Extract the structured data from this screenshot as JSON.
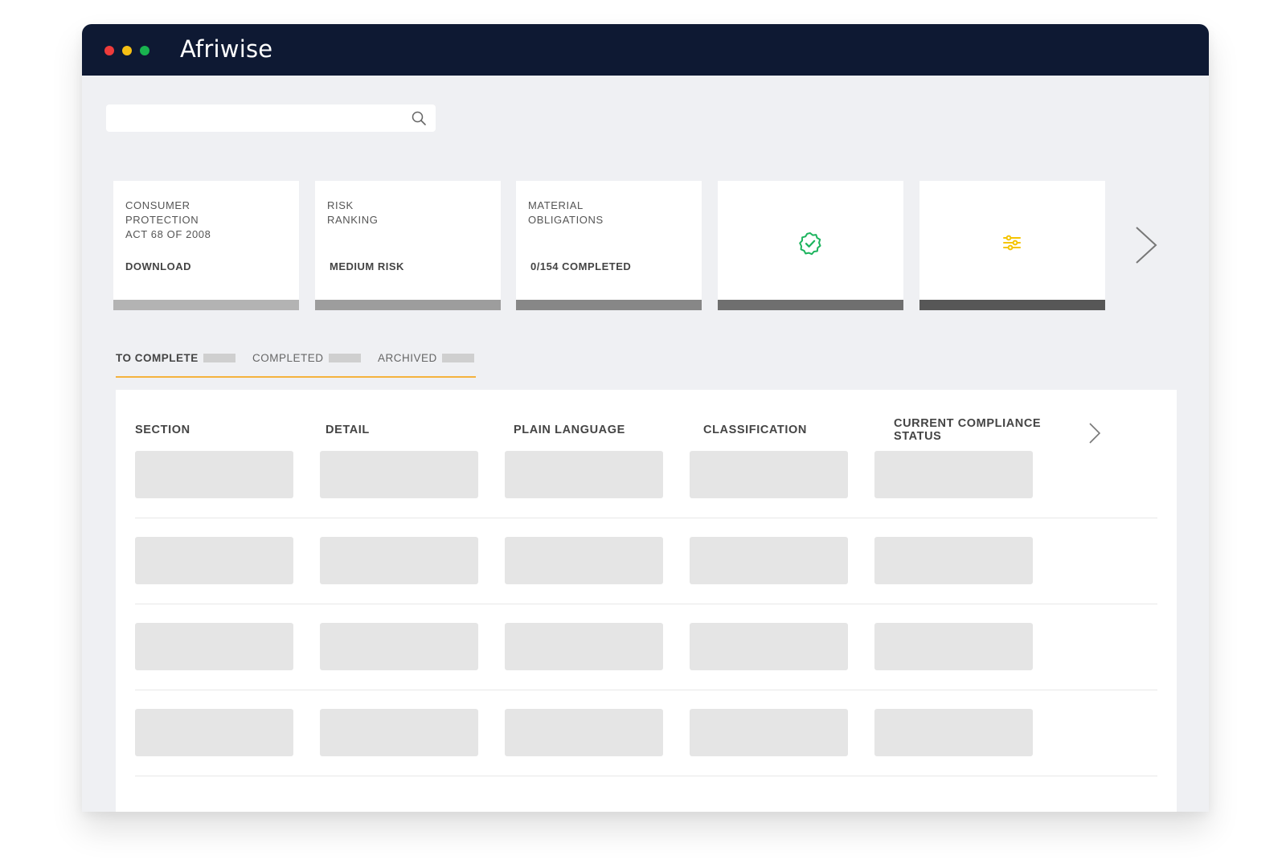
{
  "app": {
    "brand": "Afriwise"
  },
  "search": {
    "placeholder": "",
    "value": "",
    "icon": "search-icon"
  },
  "cards": [
    {
      "label_lines": [
        "CONSUMER",
        "PROTECTION",
        "ACT 68 OF 2008"
      ],
      "value": "DOWNLOAD",
      "bar_color": "#b3b3b3"
    },
    {
      "label_lines": [
        "RISK",
        "RANKING"
      ],
      "value": "MEDIUM RISK",
      "bar_color": "#9d9d9d"
    },
    {
      "label_lines": [
        "MATERIAL",
        "OBLIGATIONS"
      ],
      "value": "0/154 COMPLETED",
      "bar_color": "#878787"
    },
    {
      "icon": "verified-badge-icon",
      "icon_color": "#1db45e",
      "bar_color": "#6f6f6f"
    },
    {
      "icon": "filter-sliders-icon",
      "icon_color": "#f5c400",
      "bar_color": "#575757"
    }
  ],
  "tabs": [
    {
      "label": "TO COMPLETE",
      "active": true
    },
    {
      "label": "COMPLETED",
      "active": false
    },
    {
      "label": "ARCHIVED",
      "active": false
    }
  ],
  "table": {
    "columns": [
      "SECTION",
      "DETAIL",
      "PLAIN LANGUAGE",
      "CLASSIFICATION",
      "CURRENT COMPLIANCE STATUS"
    ],
    "column_header_lines": [
      [
        "SECTION"
      ],
      [
        "DETAIL"
      ],
      [
        "PLAIN LANGUAGE"
      ],
      [
        "CLASSIFICATION"
      ],
      [
        "CURRENT COMPLIANCE",
        "STATUS"
      ]
    ],
    "placeholder_rows": 4
  },
  "colors": {
    "titlebar": "#0e1933",
    "background": "#eff0f3",
    "tab_accent": "#f4b23e",
    "placeholder": "#e5e5e5"
  }
}
